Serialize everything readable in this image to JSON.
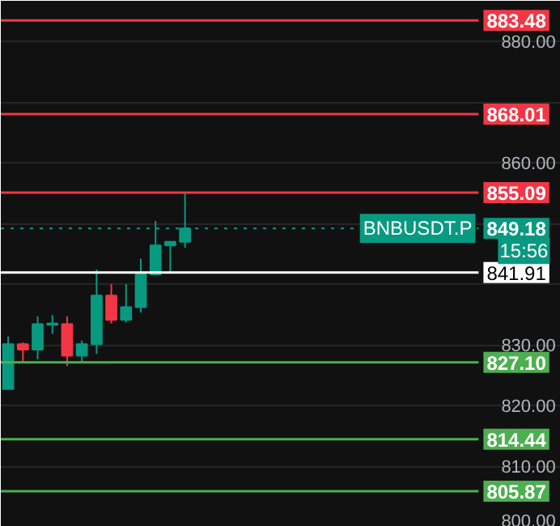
{
  "chart_data": {
    "type": "candlestick",
    "categories": [
      null,
      null,
      null,
      null,
      null,
      null,
      null,
      null,
      null,
      null,
      null,
      null,
      null,
      null,
      null,
      null,
      null,
      null,
      null,
      null,
      null,
      null,
      null,
      null,
      null,
      null,
      null,
      null,
      null,
      null,
      null,
      null,
      null,
      null,
      null,
      null,
      null,
      null
    ],
    "ohlc": [
      [
        822.7,
        831.4,
        822.7,
        830.1
      ],
      [
        830.1,
        830.4,
        827.3,
        829.2
      ],
      [
        829.2,
        834.7,
        827.6,
        833.4
      ],
      [
        833.3,
        834.9,
        831.8,
        833.5
      ],
      [
        833.4,
        834.7,
        826.5,
        828.2
      ],
      [
        828.2,
        830.7,
        827.3,
        830.1
      ],
      [
        830.1,
        842.4,
        828.5,
        838.1
      ],
      [
        838.1,
        840.0,
        833.5,
        834.1
      ],
      [
        834.1,
        840.0,
        833.7,
        836.2
      ],
      [
        836.2,
        844.2,
        835.3,
        841.6
      ],
      [
        841.6,
        850.4,
        841.6,
        846.4
      ],
      [
        846.4,
        847.0,
        841.8,
        847.0
      ],
      [
        847.0,
        855.1,
        846.0,
        849.18
      ],
      null,
      null,
      null,
      null,
      null,
      null,
      null,
      null,
      null,
      null,
      null,
      null,
      null,
      null,
      null,
      null,
      null,
      null,
      null,
      null,
      null,
      null,
      null,
      null,
      null
    ],
    "colors": [
      "#089981",
      "#f23645",
      "#089981",
      "#089981",
      "#f23645",
      "#089981",
      "#089981",
      "#f23645",
      "#089981",
      "#089981",
      "#089981",
      "#089981",
      "#089981",
      null,
      null,
      null,
      null,
      null,
      null,
      null,
      null,
      null,
      null,
      null,
      null,
      null,
      null,
      null,
      null,
      null,
      null,
      null,
      null,
      null,
      null,
      null,
      null,
      null
    ],
    "ylim": [
      800,
      886.7
    ],
    "yticks": [
      {
        "value": 800,
        "label": "800.00"
      },
      {
        "value": 810,
        "label": "810.00"
      },
      {
        "value": 820,
        "label": "820.00"
      },
      {
        "value": 830,
        "label": "830.00"
      },
      {
        "value": 840,
        "label": null
      },
      {
        "value": 850,
        "label": null
      },
      {
        "value": 860,
        "label": "860.00"
      },
      {
        "value": 870,
        "label": null
      },
      {
        "value": 880,
        "label": "880.00"
      }
    ],
    "ref_lines": [
      {
        "axis": "y",
        "value": 883.48,
        "label": "883.48",
        "color": "#f23645"
      },
      {
        "axis": "y",
        "value": 868.01,
        "label": "868.01",
        "color": "#f23645"
      },
      {
        "axis": "y",
        "value": 855.09,
        "label": "855.09",
        "color": "#f23645"
      },
      {
        "axis": "y",
        "value": 849.18,
        "label": "849.18",
        "color": "#089981",
        "line_style": "dotted"
      },
      {
        "axis": "y",
        "value": 841.91,
        "label": "841.91",
        "color": "#ffffff"
      },
      {
        "axis": "y",
        "value": 827.1,
        "label": "827.10",
        "color": "#4caf50"
      },
      {
        "axis": "y",
        "value": 814.44,
        "label": "814.44",
        "color": "#4caf50"
      },
      {
        "axis": "y",
        "value": 805.87,
        "label": "805.87",
        "color": "#4caf50"
      }
    ],
    "annotations": [
      {
        "text": "BNBUSDT.P",
        "y": 849.18
      },
      "15:56"
    ],
    "grid": "y"
  }
}
